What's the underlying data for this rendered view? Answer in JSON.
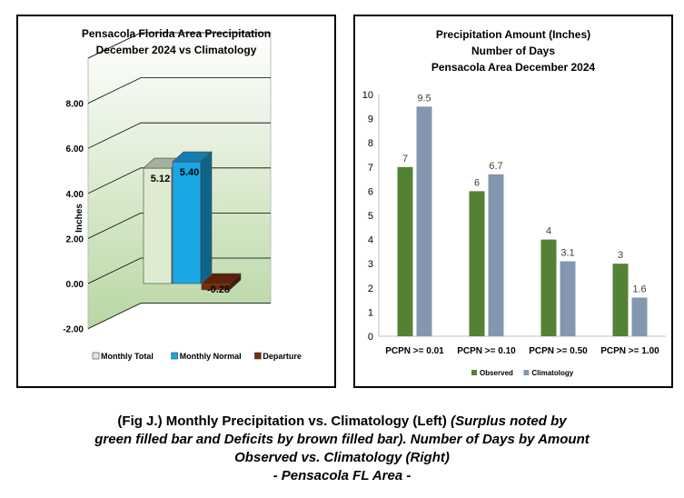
{
  "chart_data": [
    {
      "type": "bar",
      "title_lines": [
        "Pensacola Florida Area Precipitation",
        "December 2024 vs Climatology"
      ],
      "ylabel": "Inches",
      "ylim": [
        -2,
        10
      ],
      "yticks": [
        "-2.00",
        "0.00",
        "2.00",
        "4.00",
        "6.00",
        "8.00"
      ],
      "series": [
        {
          "name": "Monthly Total",
          "value": 5.12,
          "label": "5.12",
          "color": "#ddebd0"
        },
        {
          "name": "Monthly Normal",
          "value": 5.4,
          "label": "5.40",
          "color": "#1aa7e6"
        },
        {
          "name": "Departure",
          "value": -0.28,
          "label": "-0.28",
          "color": "#7b2c0b"
        }
      ]
    },
    {
      "type": "bar",
      "title_lines": [
        "Precipitation Amount (Inches)",
        "Number of Days",
        "Pensacola Area December 2024"
      ],
      "ylim": [
        0,
        10
      ],
      "yticks": [
        "0",
        "1",
        "2",
        "3",
        "4",
        "5",
        "6",
        "7",
        "8",
        "9",
        "10"
      ],
      "categories": [
        "PCPN >= 0.01",
        "PCPN >= 0.10",
        "PCPN >= 0.50",
        "PCPN >= 1.00"
      ],
      "series": [
        {
          "name": "Observed",
          "values": [
            7,
            6,
            4,
            3
          ],
          "labels": [
            "7",
            "6",
            "4",
            "3"
          ],
          "color": "#548235"
        },
        {
          "name": "Climatology",
          "values": [
            9.5,
            6.7,
            3.1,
            1.6
          ],
          "labels": [
            "9.5",
            "6.7",
            "3.1",
            "1.6"
          ],
          "color": "#8497b0"
        }
      ]
    }
  ],
  "caption": {
    "line1_normal": "(Fig J.) Monthly Precipitation vs. Climatology (Left) ",
    "line1_italic": "(Surplus noted by",
    "line2": "green filled bar and Deficits by brown filled bar). Number of Days by Amount",
    "line3": "Observed vs. Climatology (Right)",
    "line4": "- Pensacola FL Area -"
  }
}
